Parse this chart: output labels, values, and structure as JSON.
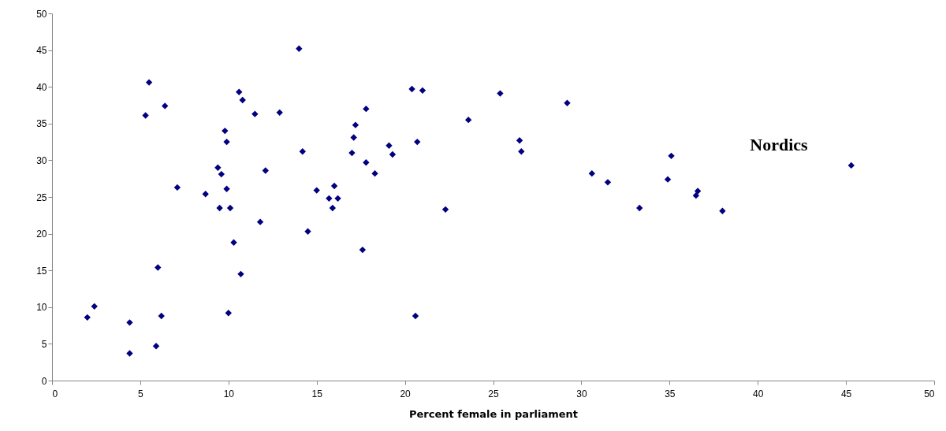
{
  "chart_data": {
    "type": "scatter",
    "xlabel": "Percent female in parliament",
    "marker": "diamond",
    "grid": false,
    "xlim": [
      0,
      50
    ],
    "xticks": [
      0,
      5,
      10,
      15,
      20,
      25,
      30,
      35,
      40,
      45,
      50
    ],
    "ylim": [
      0,
      50
    ],
    "yticks": [
      0,
      5,
      10,
      15,
      20,
      25,
      30,
      35,
      40,
      45,
      50
    ],
    "annotations": [
      "Nordics"
    ],
    "series": [
      {
        "color": "#000080",
        "x": [
          2.0,
          2.4,
          4.4,
          4.4,
          5.3,
          5.5,
          5.9,
          6.0,
          6.2,
          6.4,
          7.1,
          8.7,
          9.4,
          9.6,
          9.5,
          9.8,
          9.9,
          9.9,
          10.0,
          10.1,
          10.3,
          10.6,
          10.8,
          10.7,
          11.5,
          11.8,
          12.1,
          12.9,
          14.0,
          14.2,
          14.5,
          15.0,
          15.7,
          15.9,
          16.0,
          16.2,
          17.0,
          17.1,
          17.2,
          17.6,
          17.8,
          17.8,
          18.3,
          19.1,
          19.3,
          20.4,
          20.6,
          20.7,
          21.0,
          22.3,
          23.6,
          25.4,
          26.5,
          26.6,
          29.2,
          30.6,
          31.5,
          33.3,
          34.9,
          35.1,
          36.5,
          36.6,
          38.0,
          45.3
        ],
        "values": [
          8.6,
          10.1,
          7.9,
          3.7,
          36.1,
          40.6,
          4.7,
          15.4,
          8.8,
          37.4,
          26.3,
          25.4,
          29.0,
          28.1,
          23.5,
          34.0,
          32.5,
          26.1,
          9.2,
          23.5,
          18.8,
          39.3,
          38.2,
          14.5,
          36.3,
          21.6,
          28.6,
          36.5,
          45.2,
          31.2,
          20.3,
          25.9,
          24.8,
          23.5,
          26.5,
          24.8,
          31.0,
          33.1,
          34.8,
          17.8,
          29.7,
          37.0,
          28.2,
          32.0,
          30.8,
          39.7,
          8.8,
          32.5,
          39.5,
          23.3,
          35.5,
          39.1,
          32.7,
          31.2,
          37.8,
          28.2,
          27.0,
          23.5,
          27.4,
          30.6,
          25.2,
          25.8,
          23.1,
          29.3
        ]
      }
    ]
  }
}
